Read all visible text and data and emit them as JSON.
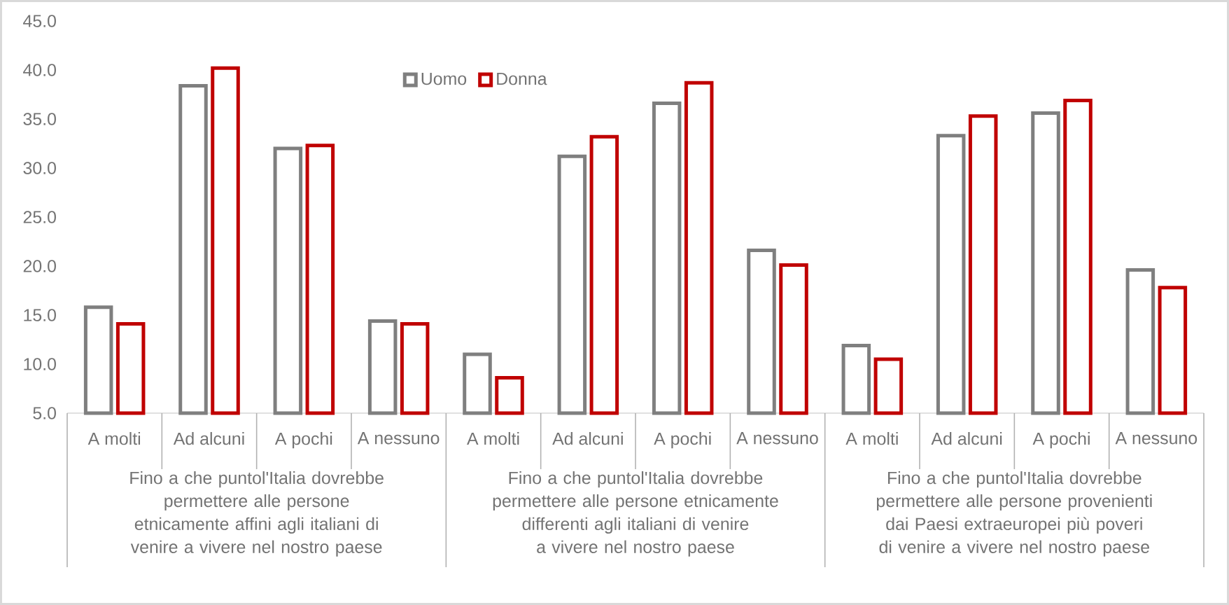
{
  "chart_data": {
    "type": "bar",
    "categories": [
      "A molti",
      "Ad alcuni",
      "A pochi",
      "A nessuno",
      "A molti",
      "Ad alcuni",
      "A pochi",
      "A nessuno",
      "A molti",
      "Ad alcuni",
      "A pochi",
      "A nessuno"
    ],
    "series": [
      {
        "name": "Uomo",
        "color": "#7f7f7f",
        "values": [
          15.8,
          38.4,
          32.0,
          14.4,
          11.0,
          31.2,
          36.6,
          21.6,
          11.9,
          33.3,
          35.6,
          19.6
        ]
      },
      {
        "name": "Donna",
        "color": "#c00000",
        "values": [
          14.1,
          40.2,
          32.3,
          14.1,
          8.6,
          33.2,
          38.7,
          20.1,
          10.5,
          35.3,
          36.9,
          17.8
        ]
      }
    ],
    "ylim": [
      5,
      45
    ],
    "yticks": [
      {
        "value": 5,
        "label": "5.0"
      },
      {
        "value": 10,
        "label": "10.0"
      },
      {
        "value": 15,
        "label": "15.0"
      },
      {
        "value": 20,
        "label": "20.0"
      },
      {
        "value": 25,
        "label": "25.0"
      },
      {
        "value": 30,
        "label": "30.0"
      },
      {
        "value": 35,
        "label": "35.0"
      },
      {
        "value": 40,
        "label": "40.0"
      },
      {
        "value": 45,
        "label": "45.0"
      }
    ],
    "legend": "top",
    "annotations": [
      "Fino a che puntol'Italia dovrebbe permettere alle persone etnicamente affini agli italiani di venire a vivere nel nostro paese",
      "Fino a che puntol'Italia dovrebbe permettere alle persone etnicamente differenti agli italiani di venire a vivere nel nostro paese",
      "Fino a che puntol'Italia dovrebbe permettere alle persone provenienti dai Paesi extraeuropei più poveri di venire a vivere nel nostro paese"
    ]
  }
}
